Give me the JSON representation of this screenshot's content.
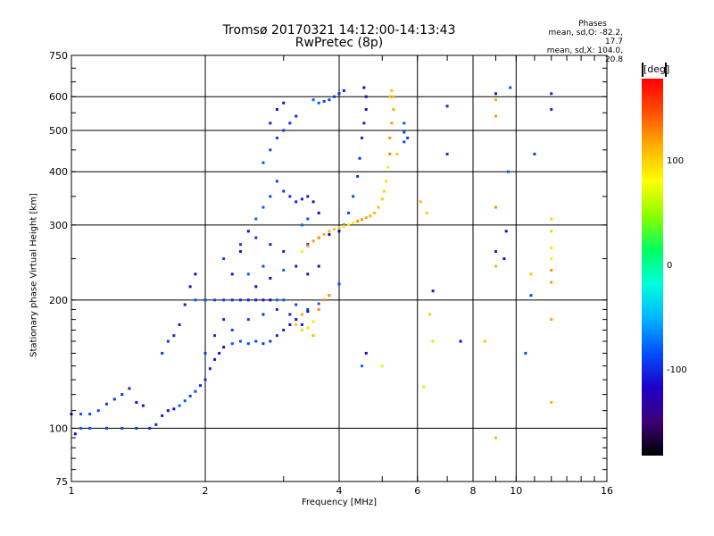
{
  "title": {
    "line1": "Tromsø 20170321 14:12:00-14:13:43",
    "line2": "RwPretec (8p)"
  },
  "phases": {
    "header": "Phases",
    "o_line": "mean, sd,O: -82.2, 17.7",
    "x_line": "mean, sd,X: 104.0, 20.8"
  },
  "colorbar": {
    "unit": "[deg]",
    "range": [
      -180,
      180
    ],
    "ticks": [
      100,
      0,
      -100
    ],
    "tick_labels": [
      "100",
      "0",
      "-100"
    ],
    "colors": [
      "#000000",
      "#3c0078",
      "#1e00c8",
      "#0050ff",
      "#00b4ff",
      "#00ffdc",
      "#00ff60",
      "#8cff00",
      "#ffff00",
      "#ffb400",
      "#ff5000",
      "#ff0000"
    ]
  },
  "chart_data": {
    "type": "scatter",
    "xlabel": "Frequency [MHz]",
    "ylabel": "Stationary phase Virtual Height [km]",
    "xscale": "log",
    "yscale": "log",
    "xlim": [
      1,
      16
    ],
    "ylim": [
      75,
      750
    ],
    "xticks": [
      1,
      2,
      4,
      6,
      8,
      10,
      16
    ],
    "yticks": [
      75,
      100,
      200,
      300,
      400,
      500,
      600,
      750
    ],
    "xgrid": [
      2,
      4,
      6,
      8,
      10
    ],
    "ygrid": [
      100,
      200,
      300,
      400,
      500,
      600
    ],
    "series": [
      {
        "points": [
          [
            1.0,
            108
          ],
          [
            1.05,
            108
          ],
          [
            1.1,
            108
          ],
          [
            1.15,
            110
          ],
          [
            1.2,
            114
          ],
          [
            1.25,
            117
          ],
          [
            1.3,
            120
          ],
          [
            1.35,
            124
          ],
          [
            1.4,
            115
          ],
          [
            1.45,
            113
          ],
          [
            1.02,
            97
          ],
          [
            1.05,
            100
          ],
          [
            1.1,
            100
          ],
          [
            1.2,
            100
          ],
          [
            1.3,
            100
          ],
          [
            1.4,
            100
          ],
          [
            1.5,
            100
          ],
          [
            1.55,
            102
          ],
          [
            1.6,
            107
          ],
          [
            1.65,
            110
          ],
          [
            1.7,
            111
          ],
          [
            1.75,
            113
          ],
          [
            1.8,
            116
          ],
          [
            1.85,
            119
          ],
          [
            1.9,
            122
          ],
          [
            1.95,
            126
          ],
          [
            2.0,
            130
          ],
          [
            2.05,
            138
          ],
          [
            2.1,
            145
          ],
          [
            2.15,
            150
          ],
          [
            2.2,
            155
          ],
          [
            2.3,
            158
          ],
          [
            2.4,
            160
          ],
          [
            2.5,
            158
          ],
          [
            2.6,
            160
          ],
          [
            2.7,
            158
          ],
          [
            2.8,
            160
          ],
          [
            2.9,
            165
          ],
          [
            3.0,
            170
          ],
          [
            3.1,
            175
          ],
          [
            3.2,
            180
          ],
          [
            3.4,
            188
          ],
          [
            3.6,
            196
          ],
          [
            3.8,
            205
          ],
          [
            4.0,
            218
          ],
          [
            1.6,
            150
          ],
          [
            1.65,
            160
          ],
          [
            1.7,
            165
          ],
          [
            1.75,
            175
          ],
          [
            1.8,
            195
          ],
          [
            1.85,
            215
          ],
          [
            1.9,
            230
          ],
          [
            1.9,
            200
          ],
          [
            2.0,
            200
          ],
          [
            2.1,
            200
          ],
          [
            2.2,
            200
          ],
          [
            2.3,
            200
          ],
          [
            2.4,
            200
          ],
          [
            2.5,
            200
          ],
          [
            2.6,
            200
          ],
          [
            2.7,
            200
          ],
          [
            2.8,
            200
          ],
          [
            2.9,
            200
          ],
          [
            3.0,
            200
          ],
          [
            3.2,
            195
          ],
          [
            3.4,
            190
          ],
          [
            2.0,
            150
          ],
          [
            2.1,
            165
          ],
          [
            2.2,
            180
          ],
          [
            2.3,
            230
          ],
          [
            2.4,
            260
          ],
          [
            2.5,
            290
          ],
          [
            2.6,
            310
          ],
          [
            2.7,
            330
          ],
          [
            2.8,
            350
          ],
          [
            2.9,
            380
          ],
          [
            3.0,
            360
          ],
          [
            3.1,
            350
          ],
          [
            3.2,
            340
          ],
          [
            3.3,
            345
          ],
          [
            3.4,
            350
          ],
          [
            3.5,
            340
          ],
          [
            3.6,
            320
          ],
          [
            3.3,
            300
          ],
          [
            3.4,
            310
          ],
          [
            2.2,
            250
          ],
          [
            2.4,
            270
          ],
          [
            2.6,
            280
          ],
          [
            2.8,
            270
          ],
          [
            3.0,
            260
          ],
          [
            3.2,
            240
          ],
          [
            3.4,
            230
          ],
          [
            3.6,
            240
          ],
          [
            2.5,
            230
          ],
          [
            2.7,
            240
          ],
          [
            2.3,
            170
          ],
          [
            2.5,
            180
          ],
          [
            2.7,
            185
          ],
          [
            2.9,
            190
          ],
          [
            3.1,
            185
          ],
          [
            3.3,
            175
          ],
          [
            2.6,
            215
          ],
          [
            2.8,
            225
          ],
          [
            3.0,
            235
          ],
          [
            2.7,
            420
          ],
          [
            2.8,
            450
          ],
          [
            2.9,
            480
          ],
          [
            3.0,
            500
          ],
          [
            3.1,
            520
          ],
          [
            3.2,
            540
          ],
          [
            2.8,
            520
          ],
          [
            2.9,
            560
          ],
          [
            3.0,
            580
          ],
          [
            3.5,
            590
          ],
          [
            3.6,
            580
          ],
          [
            3.7,
            585
          ],
          [
            3.8,
            590
          ],
          [
            3.9,
            600
          ],
          [
            4.0,
            610
          ],
          [
            4.1,
            620
          ],
          [
            3.4,
            270
          ],
          [
            3.6,
            280
          ],
          [
            3.8,
            285
          ],
          [
            4.0,
            290
          ],
          [
            4.1,
            300
          ],
          [
            4.2,
            320
          ],
          [
            4.3,
            350
          ],
          [
            4.4,
            390
          ],
          [
            4.45,
            430
          ],
          [
            4.5,
            480
          ],
          [
            4.55,
            520
          ],
          [
            4.6,
            560
          ],
          [
            4.6,
            600
          ],
          [
            4.55,
            630
          ],
          [
            5.6,
            520
          ],
          [
            5.6,
            495
          ],
          [
            5.6,
            470
          ],
          [
            5.7,
            480
          ],
          [
            7.0,
            440
          ],
          [
            7.0,
            570
          ],
          [
            9.0,
            260
          ],
          [
            9.0,
            610
          ],
          [
            9.4,
            250
          ],
          [
            9.5,
            290
          ],
          [
            9.6,
            400
          ],
          [
            9.7,
            630
          ],
          [
            10.5,
            150
          ],
          [
            10.8,
            205
          ],
          [
            11.0,
            440
          ],
          [
            12.0,
            560
          ],
          [
            12.0,
            610
          ],
          [
            6.5,
            210
          ],
          [
            7.5,
            160
          ],
          [
            4.6,
            150
          ],
          [
            4.5,
            140
          ]
        ]
      },
      {
        "points": [
          [
            3.3,
            260
          ],
          [
            3.4,
            268
          ],
          [
            3.5,
            275
          ],
          [
            3.6,
            280
          ],
          [
            3.7,
            285
          ],
          [
            3.8,
            290
          ],
          [
            3.9,
            293
          ],
          [
            4.0,
            296
          ],
          [
            4.1,
            298
          ],
          [
            4.2,
            300
          ],
          [
            4.3,
            303
          ],
          [
            4.4,
            306
          ],
          [
            4.5,
            309
          ],
          [
            4.6,
            312
          ],
          [
            4.7,
            315
          ],
          [
            4.8,
            320
          ],
          [
            4.9,
            330
          ],
          [
            5.0,
            345
          ],
          [
            5.05,
            360
          ],
          [
            5.1,
            380
          ],
          [
            5.15,
            410
          ],
          [
            5.2,
            440
          ],
          [
            5.2,
            480
          ],
          [
            5.25,
            520
          ],
          [
            5.3,
            560
          ],
          [
            5.3,
            600
          ],
          [
            5.25,
            620
          ],
          [
            3.2,
            175
          ],
          [
            3.3,
            170
          ],
          [
            3.4,
            172
          ],
          [
            3.5,
            178
          ],
          [
            3.6,
            190
          ],
          [
            3.7,
            200
          ],
          [
            3.8,
            205
          ],
          [
            3.3,
            185
          ],
          [
            3.5,
            165
          ],
          [
            6.1,
            340
          ],
          [
            6.3,
            320
          ],
          [
            6.4,
            185
          ],
          [
            6.5,
            160
          ],
          [
            6.2,
            125
          ],
          [
            5.0,
            140
          ],
          [
            9.0,
            330
          ],
          [
            9.0,
            540
          ],
          [
            9.0,
            590
          ],
          [
            9.0,
            240
          ],
          [
            9.0,
            95
          ],
          [
            10.8,
            230
          ],
          [
            12.0,
            310
          ],
          [
            12.0,
            290
          ],
          [
            12.0,
            265
          ],
          [
            12.0,
            250
          ],
          [
            12.0,
            235
          ],
          [
            12.0,
            220
          ],
          [
            12.0,
            180
          ],
          [
            12.0,
            115
          ],
          [
            5.2,
            600
          ],
          [
            8.5,
            160
          ],
          [
            5.4,
            440
          ]
        ]
      }
    ]
  }
}
